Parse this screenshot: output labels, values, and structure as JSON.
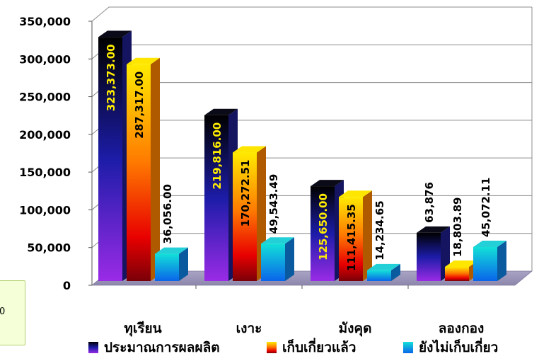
{
  "side_box": {
    "text": "0"
  },
  "chart_data": {
    "type": "bar",
    "title": "",
    "xlabel": "",
    "ylabel": "",
    "ylim": [
      0,
      350000
    ],
    "grid": true,
    "legend_position": "bottom",
    "categories": [
      "ทุเรียน",
      "เงาะ",
      "มังคุด",
      "ลองกอง"
    ],
    "yticks": [
      "0",
      "50,000",
      "100,000",
      "150,000",
      "200,000",
      "250,000",
      "300,000",
      "350,000"
    ],
    "series": [
      {
        "name": "ประมาณการผลผลิต",
        "values": [
          323373.0,
          219816.0,
          125650.0,
          63876
        ],
        "labels": [
          "323,373.00",
          "219,816.00",
          "125,650.00",
          "63,876"
        ],
        "color": "#1a1aa8"
      },
      {
        "name": "เก็บเกี่ยวแล้ว",
        "values": [
          287317.0,
          170272.51,
          111415.35,
          18803.89
        ],
        "labels": [
          "287,317.00",
          "170,272.51",
          "111,415.35",
          "18,803.89"
        ],
        "color": "#ff7a00"
      },
      {
        "name": "ยังไม่เก็บเกี่ยว",
        "values": [
          36056.0,
          49543.49,
          14234.65,
          45072.11
        ],
        "labels": [
          "36,056.00",
          "49,543.49",
          "14,234.65",
          "45,072.11"
        ],
        "color": "#12b8e8"
      }
    ]
  }
}
